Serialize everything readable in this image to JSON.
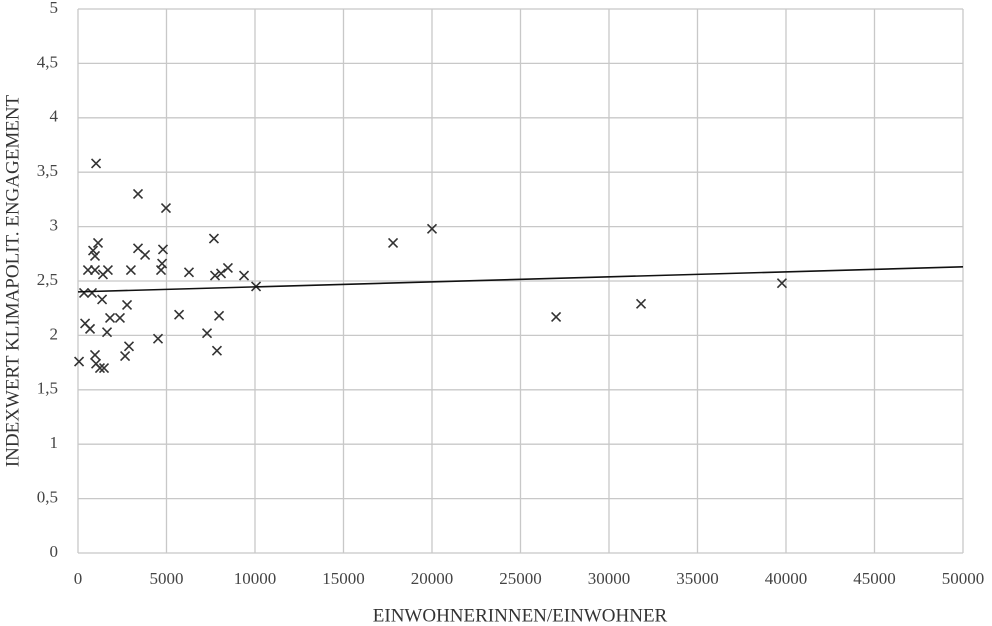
{
  "chart_data": {
    "type": "scatter",
    "xlabel": "EINWOHNERINNEN/EINWOHNER",
    "ylabel": "INDEXWERT KLIMAPOLIT. ENGAGEMENT",
    "xlim": [
      0,
      50000
    ],
    "ylim": [
      0,
      5
    ],
    "xticks": [
      0,
      5000,
      10000,
      15000,
      20000,
      25000,
      30000,
      35000,
      40000,
      45000,
      50000
    ],
    "yticks": [
      0,
      {
        "value": 0.5,
        "label": "0,5"
      },
      1,
      {
        "value": 1.5,
        "label": "1,5"
      },
      2,
      {
        "value": 2.5,
        "label": "2,5"
      },
      3,
      {
        "value": 3.5,
        "label": "3,5"
      },
      4,
      {
        "value": 4.5,
        "label": "4,5"
      },
      5
    ],
    "grid": true,
    "color": "#333333",
    "x": [
      60,
      340,
      400,
      680,
      560,
      790,
      850,
      960,
      1020,
      960,
      1020,
      1130,
      960,
      1240,
      1360,
      1470,
      1410,
      1640,
      1690,
      1810,
      2370,
      2660,
      2770,
      2880,
      2990,
      3390,
      3390,
      3790,
      4520,
      4690,
      4750,
      4800,
      4970,
      5710,
      6270,
      7290,
      7680,
      7740,
      7850,
      7970,
      8080,
      8470,
      9380,
      10060,
      17800,
      20000,
      27010,
      31810,
      39770
    ],
    "values": [
      1.76,
      2.39,
      2.11,
      2.06,
      2.6,
      2.39,
      2.78,
      2.6,
      3.58,
      1.82,
      1.74,
      2.85,
      2.73,
      1.7,
      2.33,
      1.7,
      2.56,
      2.03,
      2.6,
      2.16,
      2.16,
      1.81,
      2.28,
      1.9,
      2.6,
      3.3,
      2.8,
      2.74,
      1.97,
      2.6,
      2.66,
      2.79,
      3.17,
      2.19,
      2.58,
      2.02,
      2.89,
      2.55,
      1.86,
      2.18,
      2.57,
      2.62,
      2.55,
      2.45,
      2.85,
      2.98,
      2.17,
      2.29,
      2.48
    ],
    "trendline": {
      "x": [
        0,
        50000
      ],
      "y": [
        2.4,
        2.63
      ],
      "color": "#111111"
    }
  }
}
